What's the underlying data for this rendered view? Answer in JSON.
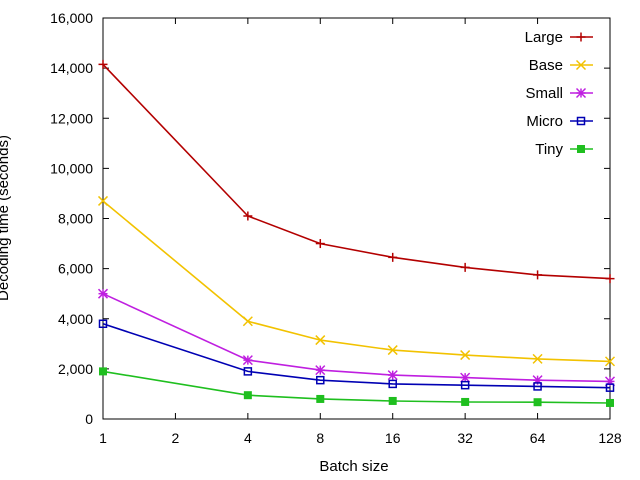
{
  "chart_data": {
    "type": "line",
    "xlabel": "Batch size",
    "ylabel": "Decoding time (seconds)",
    "x_scale": "log2",
    "x_ticks": [
      1,
      2,
      4,
      8,
      16,
      32,
      64,
      128
    ],
    "x_tick_labels": [
      "1",
      "2",
      "4",
      "8",
      "16",
      "32",
      "64",
      "128"
    ],
    "xlim": [
      1,
      128
    ],
    "ylim": [
      0,
      16000
    ],
    "y_ticks": [
      0,
      2000,
      4000,
      6000,
      8000,
      10000,
      12000,
      14000,
      16000
    ],
    "y_tick_labels": [
      "0",
      "2,000",
      "4,000",
      "6,000",
      "8,000",
      "10,000",
      "12,000",
      "14,000",
      "16,000"
    ],
    "grid": false,
    "legend_position": "top-right",
    "x": [
      1,
      4,
      8,
      16,
      32,
      64,
      128
    ],
    "series": [
      {
        "name": "Large",
        "color": "#b30000",
        "marker": "plus",
        "values": [
          14150,
          8100,
          7000,
          6450,
          6050,
          5750,
          5600
        ]
      },
      {
        "name": "Base",
        "color": "#f2c200",
        "marker": "x",
        "values": [
          8700,
          3900,
          3150,
          2750,
          2550,
          2400,
          2300
        ]
      },
      {
        "name": "Small",
        "color": "#bf1fe0",
        "marker": "star",
        "values": [
          5000,
          2350,
          1950,
          1750,
          1650,
          1550,
          1500
        ]
      },
      {
        "name": "Micro",
        "color": "#0000b3",
        "marker": "square-open",
        "values": [
          3800,
          1900,
          1550,
          1400,
          1350,
          1300,
          1250
        ]
      },
      {
        "name": "Tiny",
        "color": "#1fbf1f",
        "marker": "square-filled",
        "values": [
          1900,
          950,
          800,
          720,
          680,
          670,
          640
        ]
      }
    ]
  }
}
